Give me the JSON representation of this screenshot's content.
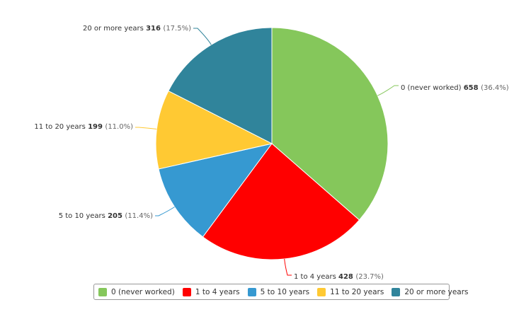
{
  "chart_data": {
    "type": "pie",
    "title": "",
    "categories": [
      "0 (never worked)",
      "1 to 4 years",
      "5 to 10 years",
      "11 to 20 years",
      "20 or more years"
    ],
    "values": [
      658,
      428,
      205,
      199,
      316
    ],
    "percent_labels": [
      "(36.4%)",
      "(23.7%)",
      "(11.4%)",
      "(11.0%)",
      "(17.5%)"
    ],
    "colors": [
      "#85c75b",
      "#ff0000",
      "#3699d1",
      "#ffc933",
      "#30849b"
    ],
    "start_angle_deg": 0,
    "direction": "clockwise",
    "legend_position": "bottom"
  },
  "legend": {
    "items": [
      {
        "label": "0 (never worked)",
        "color": "#85c75b"
      },
      {
        "label": "1 to 4 years",
        "color": "#ff0000"
      },
      {
        "label": "5 to 10 years",
        "color": "#3699d1"
      },
      {
        "label": "11 to 20 years",
        "color": "#ffc933"
      },
      {
        "label": "20 or more years",
        "color": "#30849b"
      }
    ]
  }
}
